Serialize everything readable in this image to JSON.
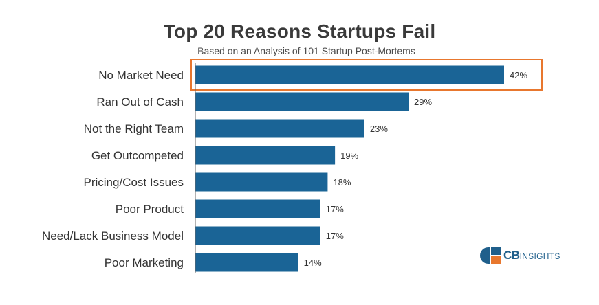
{
  "header": {
    "title": "Top 20 Reasons Startups Fail",
    "subtitle": "Based on an Analysis of 101 Startup Post-Mortems"
  },
  "logo": {
    "text_bold": "CB",
    "text_small": "INSIGHTS",
    "colors": {
      "primary": "#1f5f8b",
      "accent": "#e8772e"
    }
  },
  "colors": {
    "bar": "#1a6496",
    "highlight_box": "#e8772e",
    "axis": "#666666"
  },
  "chart_data": {
    "type": "bar",
    "orientation": "horizontal",
    "title": "Top 20 Reasons Startups Fail",
    "subtitle": "Based on an Analysis of 101 Startup Post-Mortems",
    "categories": [
      "No Market Need",
      "Ran Out of Cash",
      "Not the Right Team",
      "Get Outcompeted",
      "Pricing/Cost Issues",
      "Poor Product",
      "Need/Lack Business Model",
      "Poor Marketing"
    ],
    "values": [
      42,
      29,
      23,
      19,
      18,
      17,
      17,
      14
    ],
    "value_labels": [
      "42%",
      "29%",
      "23%",
      "19%",
      "18%",
      "17%",
      "17%",
      "14%"
    ],
    "xlim": [
      0,
      42
    ],
    "grid": false,
    "highlighted_category": "No Market Need"
  }
}
